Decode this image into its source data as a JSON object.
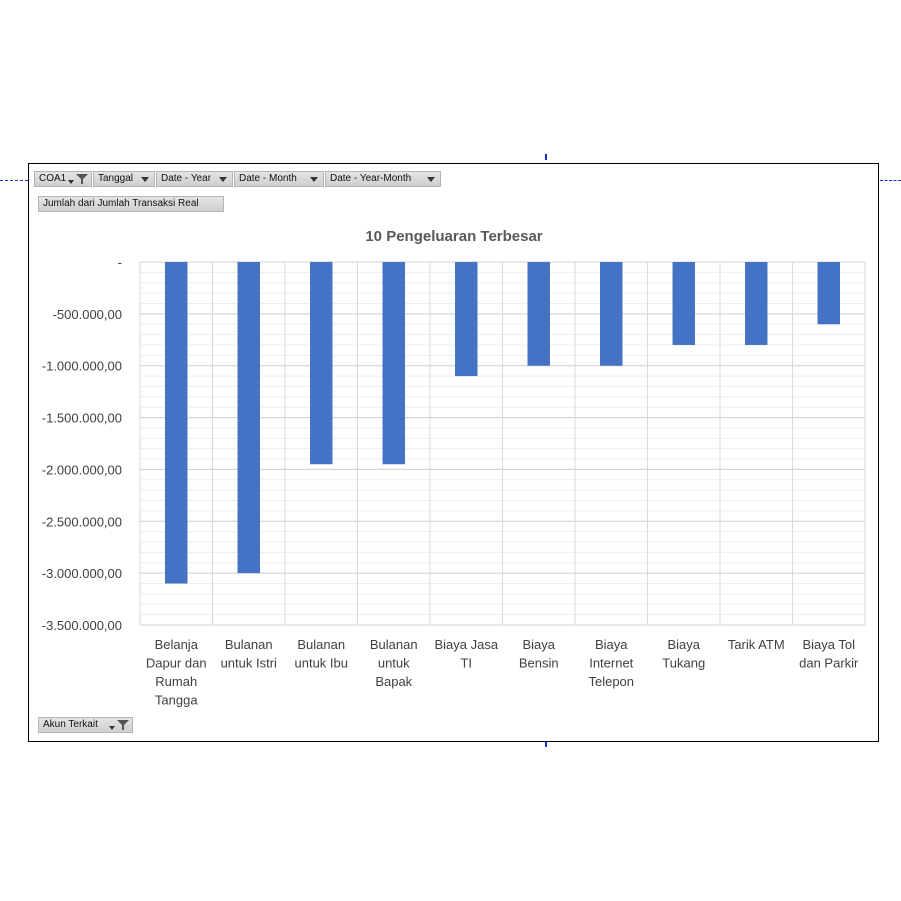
{
  "pivot": {
    "filters": [
      "COA1",
      "Tanggal",
      "Date - Year",
      "Date - Month",
      "Date - Year-Month"
    ],
    "value_field": "Jumlah dari Jumlah Transaksi Real",
    "axis_field": "Akun Terkait"
  },
  "colors": {
    "bar": "#4472c4",
    "guide": "#1f2fc9"
  },
  "chart_data": {
    "type": "bar",
    "title": "10 Pengeluaran Terbesar",
    "categories": [
      "Belanja Dapur dan Rumah Tangga",
      "Bulanan untuk Istri",
      "Bulanan untuk Ibu",
      "Bulanan untuk Bapak",
      "Biaya Jasa TI",
      "Biaya Bensin",
      "Biaya Internet Telepon",
      "Biaya Tukang",
      "Tarik ATM",
      "Biaya Tol dan Parkir"
    ],
    "category_labels": [
      [
        "Belanja",
        "Dapur dan",
        "Rumah",
        "Tangga"
      ],
      [
        "Bulanan",
        "untuk Istri"
      ],
      [
        "Bulanan",
        "untuk Ibu"
      ],
      [
        "Bulanan",
        "untuk",
        "Bapak"
      ],
      [
        "Biaya Jasa",
        "TI"
      ],
      [
        "Biaya",
        "Bensin"
      ],
      [
        "Biaya",
        "Internet",
        "Telepon"
      ],
      [
        "Biaya",
        "Tukang"
      ],
      [
        "Tarik ATM"
      ],
      [
        "Biaya Tol",
        "dan Parkir"
      ]
    ],
    "values": [
      -3100000,
      -3000000,
      -1950000,
      -1950000,
      -1100000,
      -1000000,
      -1000000,
      -800000,
      -800000,
      -600000
    ],
    "ylim": [
      -3500000,
      0
    ],
    "yticks": [
      0,
      -500000,
      -1000000,
      -1500000,
      -2000000,
      -2500000,
      -3000000,
      -3500000
    ],
    "ytick_labels": [
      "-",
      "-500.000,00",
      "-1.000.000,00",
      "-1.500.000,00",
      "-2.000.000,00",
      "-2.500.000,00",
      "-3.000.000,00",
      "-3.500.000,00"
    ],
    "grid": true,
    "legend": "none"
  }
}
